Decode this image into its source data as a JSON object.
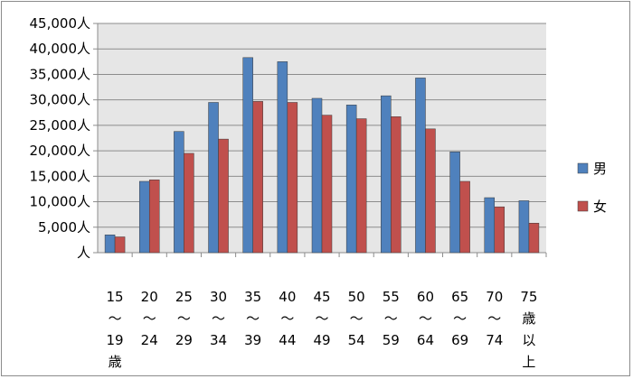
{
  "chart_data": {
    "type": "bar",
    "categories": [
      "15～19歳",
      "20～24",
      "25～29",
      "30～34",
      "35～39",
      "40～44",
      "45～49",
      "50～54",
      "55～59",
      "60～64",
      "65～69",
      "70～74",
      "75歳以上"
    ],
    "category_lines": [
      [
        "15",
        "～",
        "19",
        "歳"
      ],
      [
        "20",
        "～",
        "24"
      ],
      [
        "25",
        "～",
        "29"
      ],
      [
        "30",
        "～",
        "34"
      ],
      [
        "35",
        "～",
        "39"
      ],
      [
        "40",
        "～",
        "44"
      ],
      [
        "45",
        "～",
        "49"
      ],
      [
        "50",
        "～",
        "54"
      ],
      [
        "55",
        "～",
        "59"
      ],
      [
        "60",
        "～",
        "64"
      ],
      [
        "65",
        "～",
        "69"
      ],
      [
        "70",
        "～",
        "74"
      ],
      [
        "75",
        "歳",
        "以",
        "上"
      ]
    ],
    "series": [
      {
        "name": "男",
        "color": "#4f81bd",
        "values": [
          3500,
          14000,
          23800,
          29500,
          38300,
          37500,
          30300,
          29000,
          30800,
          34300,
          19800,
          10800,
          10200
        ]
      },
      {
        "name": "女",
        "color": "#c0504d",
        "values": [
          3100,
          14300,
          19500,
          22300,
          29700,
          29500,
          27000,
          26300,
          26700,
          24300,
          14000,
          9000,
          5800
        ]
      }
    ],
    "ylim": [
      0,
      45000
    ],
    "ytick_labels": [
      "人",
      "5,000人",
      "10,000人",
      "15,000人",
      "20,000人",
      "25,000人",
      "30,000人",
      "35,000人",
      "40,000人",
      "45,000人"
    ],
    "grid": true,
    "plot_background": "#e6e6e6",
    "legend_position": "right",
    "title": "",
    "xlabel": "",
    "ylabel": ""
  }
}
